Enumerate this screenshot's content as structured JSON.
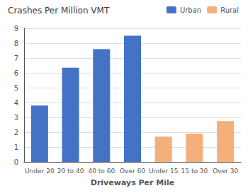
{
  "chart_data": {
    "type": "bar",
    "title": "Crashes Per Million VMT",
    "xlabel": "Driveways Per Mile",
    "categories": [
      "Under 20",
      "20 to 40",
      "40 to 60",
      "Over 60",
      "Under 15",
      "15 to 30",
      "Over 30"
    ],
    "series": [
      {
        "name": "Urban",
        "color": "#4472c4",
        "values": [
          3.8,
          6.35,
          7.6,
          8.5,
          null,
          null,
          null
        ]
      },
      {
        "name": "Rural",
        "color": "#f4b07a",
        "values": [
          null,
          null,
          null,
          null,
          1.7,
          1.9,
          2.75
        ]
      }
    ],
    "ylim": [
      0,
      9
    ],
    "yticks": [
      0,
      1,
      2,
      3,
      4,
      5,
      6,
      7,
      8,
      9
    ],
    "grid": true,
    "legend": "upper right"
  }
}
